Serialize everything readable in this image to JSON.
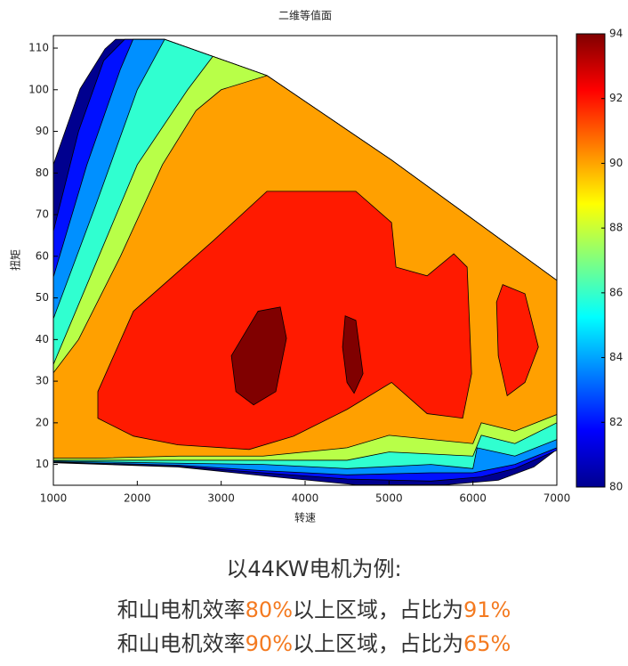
{
  "chart_data": {
    "type": "contourf",
    "title": "二维等值面",
    "x_label": "转速",
    "y_label": "扭矩",
    "xlim": [
      1000,
      7000
    ],
    "ylim": [
      5,
      113
    ],
    "xticks": [
      1000,
      2000,
      3000,
      4000,
      5000,
      6000,
      7000
    ],
    "yticks": [
      10,
      20,
      30,
      40,
      50,
      60,
      70,
      80,
      90,
      100,
      110
    ],
    "regions": [
      {
        "level": 80,
        "color": "#00008f",
        "x": [
          1000,
          1318,
          1615,
          1742,
          2326,
          3545,
          5030,
          7000,
          7000,
          6726,
          6302,
          5666,
          4605,
          3545,
          2485,
          1000
        ],
        "y": [
          82,
          100.2,
          109.8,
          112.1,
          112.1,
          103.4,
          83.1,
          54.2,
          13.6,
          9.4,
          6.2,
          5.1,
          5.1,
          7.2,
          9.4,
          10.4
        ]
      },
      {
        "level": 82,
        "color": "#0010ff",
        "x": [
          1000,
          1300,
          1600,
          1850,
          2326,
          3545,
          5030,
          7000,
          7000,
          6500,
          6100,
          5500,
          4500,
          3500,
          2500,
          1000
        ],
        "y": [
          66,
          90,
          107,
          112.1,
          112.1,
          103.4,
          83.1,
          54.2,
          13.4,
          9,
          7,
          6,
          6.5,
          8,
          9.5,
          10.5
        ]
      },
      {
        "level": 84,
        "color": "#0090ff",
        "x": [
          1000,
          1400,
          1800,
          1950,
          2326,
          3545,
          5030,
          7000,
          7000,
          6500,
          6000,
          5500,
          4500,
          3500,
          2500,
          1000
        ],
        "y": [
          55,
          82,
          105,
          112.1,
          112.1,
          103.4,
          83.1,
          54.2,
          14,
          10,
          8,
          8,
          7.5,
          8.5,
          9.8,
          10.6
        ]
      },
      {
        "level": 86,
        "color": "#30ffd0",
        "x": [
          1000,
          1500,
          2000,
          2326,
          3545,
          5030,
          7000,
          7000,
          6500,
          6050,
          6000,
          5500,
          4500,
          3500,
          2500,
          1000
        ],
        "y": [
          45,
          72,
          100,
          112.1,
          103.4,
          83.1,
          54.2,
          16,
          12,
          14,
          9,
          10,
          9,
          10,
          10.3,
          10.8
        ]
      },
      {
        "level": 88,
        "color": "#b8ff48",
        "x": [
          1000,
          1500,
          2000,
          2600,
          2900,
          3545,
          5030,
          7000,
          7000,
          6500,
          6100,
          6000,
          5000,
          4500,
          3500,
          2500,
          1000
        ],
        "y": [
          34,
          58,
          82,
          100,
          108,
          103.4,
          83.1,
          54.2,
          20,
          15,
          17,
          12,
          13,
          11,
          11,
          11,
          11
        ]
      },
      {
        "level": 90,
        "color": "#ffa000",
        "x": [
          1000,
          1300,
          1800,
          2300,
          2700,
          3000,
          3545,
          5030,
          7000,
          7000,
          6500,
          6100,
          6000,
          5000,
          4500,
          3500,
          2500,
          1500,
          1000
        ],
        "y": [
          32,
          40,
          60,
          82,
          95,
          100,
          103.4,
          83.1,
          54.2,
          22,
          18,
          20,
          15,
          17,
          14,
          12,
          12,
          11.5,
          11.5
        ]
      },
      {
        "level": 92,
        "color": "#ff1a00",
        "x": [
          1530,
          1954,
          2909,
          3545,
          4605,
          5030,
          5083,
          5454,
          5772,
          5931,
          5984,
          5878,
          5454,
          5030,
          4499,
          3863,
          3333,
          2485,
          1954,
          1530
        ],
        "y": [
          27.5,
          46.8,
          63.8,
          75.6,
          75.6,
          68.1,
          57.4,
          55.3,
          60.6,
          57.4,
          31.8,
          21.1,
          22.2,
          29.7,
          23.2,
          16.8,
          13.6,
          14.7,
          16.8,
          21.1
        ]
      },
      {
        "level": 92,
        "color": "#ff1a00",
        "x": [
          6355,
          6620,
          6780,
          6620,
          6408,
          6302,
          6281
        ],
        "y": [
          53.2,
          51,
          38.2,
          29.7,
          26.5,
          36.1,
          49
        ]
      },
      {
        "level": 94,
        "color": "#800000",
        "x": [
          3121,
          3439,
          3704,
          3778,
          3651,
          3386,
          3175
        ],
        "y": [
          36.1,
          46.8,
          47.8,
          40.3,
          27.5,
          24.3,
          27.5
        ]
      },
      {
        "level": 94,
        "color": "#800000",
        "x": [
          4478,
          4605,
          4690,
          4584,
          4499,
          4446
        ],
        "y": [
          45.7,
          44.6,
          31.8,
          27.1,
          29.7,
          38.2
        ]
      }
    ],
    "colorbar": {
      "lim": [
        80,
        94
      ],
      "ticks": [
        80,
        82,
        84,
        86,
        88,
        90,
        92,
        94
      ],
      "colors": [
        "#00008f",
        "#0000ff",
        "#0080ff",
        "#00ffff",
        "#80ff80",
        "#ffff00",
        "#ff8000",
        "#ff0000",
        "#800000"
      ]
    }
  },
  "caption": {
    "intro": "以44KW电机为例:",
    "lines": [
      [
        "和山电机效率",
        "80%",
        "以上区域，占比为",
        "91%"
      ],
      [
        "和山电机效率",
        "90%",
        "以上区域，占比为",
        "65%"
      ]
    ]
  }
}
